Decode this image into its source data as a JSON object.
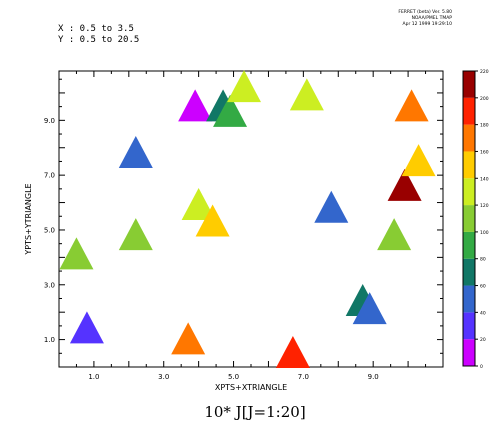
{
  "header": {
    "lines": [
      "FERRET (beta) Ver. 5.80",
      "NOAA/PMEL TMAP",
      "Apr 12 1999 19:29:10"
    ]
  },
  "info": {
    "x_range": "X : 0.5 to 3.5",
    "y_range": "Y : 0.5 to 20.5"
  },
  "chart_data": {
    "type": "scatter",
    "marker": "triangle",
    "title": "10* J[J=1:20]",
    "xlabel": "XPTS+XTRIANGLE",
    "ylabel": "YPTS+YTRIANGLE",
    "xlim": [
      0,
      11
    ],
    "ylim": [
      0,
      10.8
    ],
    "x_ticks": [
      1,
      3,
      5,
      7,
      9
    ],
    "x_tick_labels": [
      "1.0",
      "3.0",
      "5.0",
      "7.0",
      "9.0"
    ],
    "y_ticks": [
      1,
      3,
      5,
      7,
      9
    ],
    "y_tick_labels": [
      "1.0",
      "3.0",
      "5.0",
      "7.0",
      "9.0"
    ],
    "points": [
      {
        "x": 0.5,
        "y": 4.0,
        "value": 110
      },
      {
        "x": 0.8,
        "y": 1.3,
        "value": 30
      },
      {
        "x": 2.2,
        "y": 4.7,
        "value": 100
      },
      {
        "x": 2.2,
        "y": 7.7,
        "value": 50
      },
      {
        "x": 3.7,
        "y": 0.9,
        "value": 170
      },
      {
        "x": 3.9,
        "y": 9.4,
        "value": 10
      },
      {
        "x": 4.0,
        "y": 5.8,
        "value": 130
      },
      {
        "x": 4.4,
        "y": 5.2,
        "value": 150
      },
      {
        "x": 4.7,
        "y": 9.4,
        "value": 70
      },
      {
        "x": 4.9,
        "y": 9.2,
        "value": 90
      },
      {
        "x": 5.3,
        "y": 10.1,
        "value": 120
      },
      {
        "x": 6.7,
        "y": 0.4,
        "value": 190
      },
      {
        "x": 7.1,
        "y": 9.8,
        "value": 125
      },
      {
        "x": 7.8,
        "y": 5.7,
        "value": 40
      },
      {
        "x": 8.7,
        "y": 2.3,
        "value": 70
      },
      {
        "x": 8.9,
        "y": 2.0,
        "value": 50
      },
      {
        "x": 9.6,
        "y": 4.7,
        "value": 100
      },
      {
        "x": 9.9,
        "y": 6.5,
        "value": 210
      },
      {
        "x": 10.1,
        "y": 9.4,
        "value": 160
      },
      {
        "x": 10.3,
        "y": 7.4,
        "value": 140
      }
    ],
    "colorbar": {
      "min": 0,
      "max": 220,
      "levels": [
        0,
        20,
        40,
        60,
        80,
        100,
        120,
        140,
        160,
        180,
        200,
        220
      ],
      "labels": [
        "0",
        "20",
        "40",
        "60",
        "80",
        "100",
        "120",
        "140",
        "160",
        "180",
        "200",
        "220"
      ],
      "colors": [
        "#cc00ff",
        "#5533ff",
        "#3366cc",
        "#117766",
        "#33aa44",
        "#88cc33",
        "#ccee22",
        "#ffcc00",
        "#ff7700",
        "#ff2200",
        "#990000"
      ]
    }
  }
}
